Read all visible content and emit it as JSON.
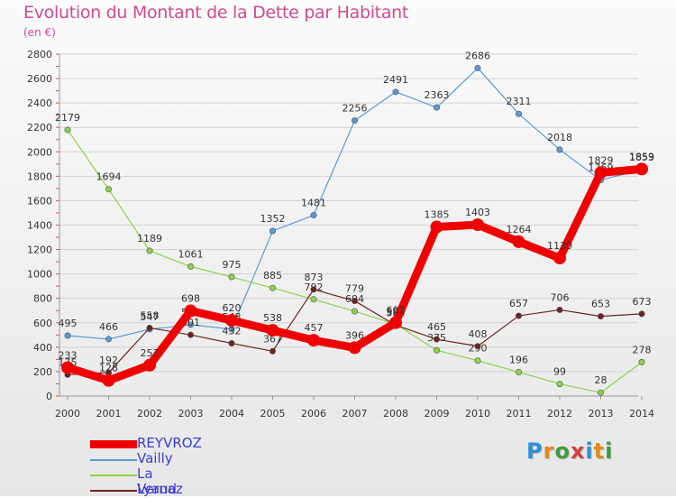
{
  "title": "Evolution du Montant de la Dette par Habitant",
  "subtitle": "(en €)",
  "logo": {
    "text": "Proxiti",
    "colors": [
      "#2f8fd8",
      "#e08b1f",
      "#3f9b3f",
      "#d43f3f",
      "#2f8fd8",
      "#e08b1f",
      "#3f9b3f"
    ]
  },
  "chart_data": {
    "type": "line",
    "x": [
      2000,
      2001,
      2002,
      2003,
      2004,
      2005,
      2006,
      2007,
      2008,
      2009,
      2010,
      2011,
      2012,
      2013,
      2014
    ],
    "ylim": [
      0,
      2800
    ],
    "yticks": [
      0,
      200,
      400,
      600,
      800,
      1000,
      1200,
      1400,
      1600,
      1800,
      2000,
      2200,
      2400,
      2600,
      2800
    ],
    "grid": true,
    "legend_position": "bottom-left",
    "series": [
      {
        "name": "Vailly",
        "color": "#5b9bd5",
        "values": [
          495,
          466,
          547,
          584,
          548,
          1352,
          1481,
          2256,
          2491,
          2363,
          2686,
          2311,
          2018,
          1769,
          1853
        ]
      },
      {
        "name": "La Vernaz",
        "color": "#8fd14f",
        "values": [
          2179,
          1694,
          1189,
          1061,
          975,
          885,
          792,
          694,
          589,
          375,
          290,
          196,
          99,
          28,
          278
        ]
      },
      {
        "name": "Lyaud",
        "color": "#6b2424",
        "values": [
          175,
          192,
          558,
          501,
          432,
          367,
          873,
          779,
          580,
          465,
          408,
          657,
          706,
          653,
          673
        ]
      },
      {
        "name": "REYVROZ",
        "color": "#ee0000",
        "values": [
          233,
          128,
          253,
          698,
          620,
          538,
          457,
          396,
          601,
          1385,
          1403,
          1264,
          1130,
          1829,
          1859
        ]
      }
    ]
  }
}
